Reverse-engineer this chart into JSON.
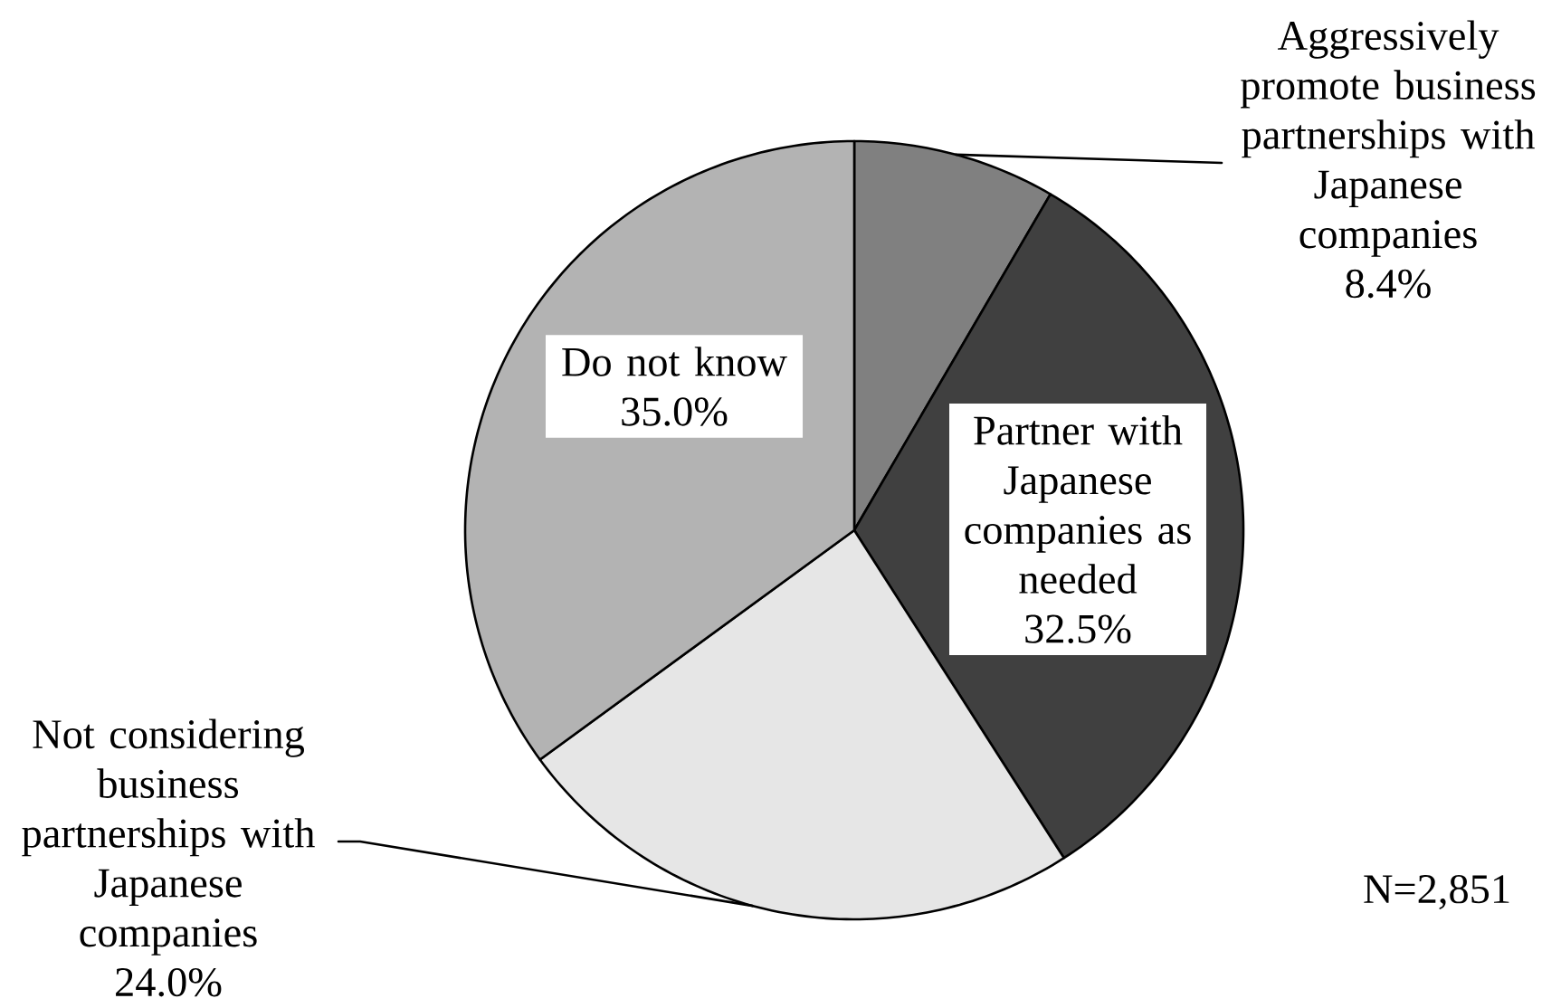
{
  "chart_data": {
    "type": "pie",
    "categories": [
      "Aggressively promote business partnerships with Japanese companies",
      "Partner with Japanese companies as needed",
      "Not considering business partnerships with Japanese companies",
      "Do not know"
    ],
    "values": [
      8.4,
      32.5,
      24.0,
      35.0
    ],
    "value_labels": [
      "8.4%",
      "32.5%",
      "24.0%",
      "35.0%"
    ],
    "colors": [
      "#808080",
      "#404040",
      "#e6e6e6",
      "#b3b3b3"
    ],
    "annotations": [
      "N=2,851"
    ]
  }
}
